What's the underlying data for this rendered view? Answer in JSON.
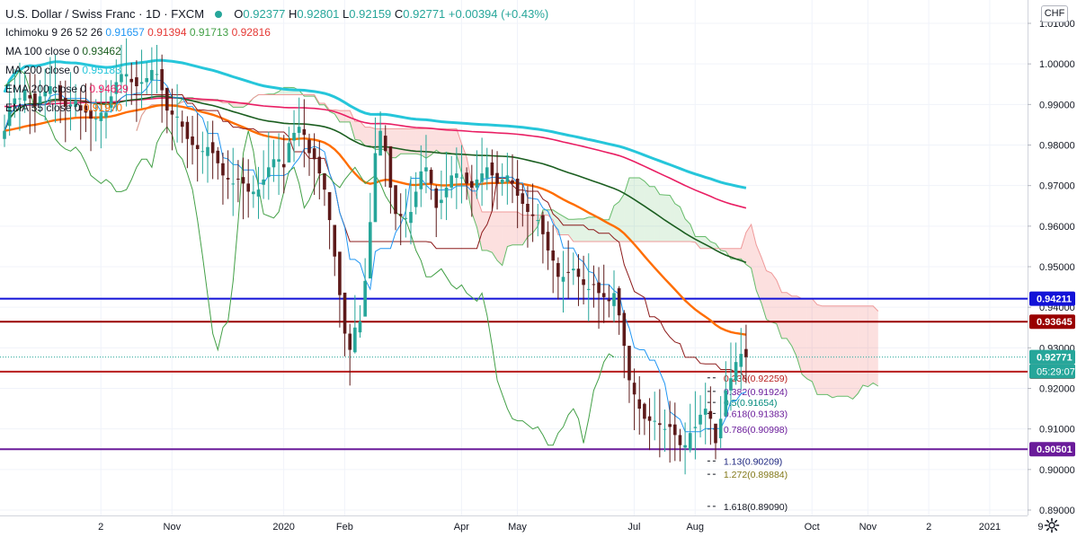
{
  "header": {
    "title": "U.S. Dollar / Swiss Franc · 1D · FXCM",
    "ohlc": [
      {
        "k": "O",
        "v": "0.92377"
      },
      {
        "k": "H",
        "v": "0.92801"
      },
      {
        "k": "L",
        "v": "0.92159"
      },
      {
        "k": "C",
        "v": "0.92771"
      }
    ],
    "change": "+0.00394 (+0.43%)",
    "indicators": [
      {
        "name": "Ichimoku 9 26 52 26",
        "values": [
          {
            "v": "0.91657",
            "color": "#2196f3"
          },
          {
            "v": "0.91394",
            "color": "#e53935"
          },
          {
            "v": "0.91713",
            "color": "#43a047"
          },
          {
            "v": "0.92816",
            "color": "#e53935"
          }
        ]
      },
      {
        "name": "MA 100 close 0",
        "values": [
          {
            "v": "0.93462",
            "color": "#1b5e20"
          }
        ]
      },
      {
        "name": "MA 200 close 0",
        "values": [
          {
            "v": "0.95183",
            "color": "#26c6da"
          }
        ]
      },
      {
        "name": "EMA 200 close 0",
        "values": [
          {
            "v": "0.94629",
            "color": "#e91e63"
          }
        ]
      },
      {
        "name": "EMA 55 close 0",
        "values": [
          {
            "v": "0.91970",
            "color": "#ff6d00"
          }
        ]
      }
    ]
  },
  "currency_badge": "CHF",
  "chart_data": {
    "type": "candlestick",
    "symbol": "USDCHF",
    "ylim": [
      0.889,
      1.0125
    ],
    "y_ticks": [
      "0.89000",
      "0.90000",
      "0.91000",
      "0.92000",
      "0.93000",
      "0.94000",
      "0.95000",
      "0.96000",
      "0.97000",
      "0.98000",
      "0.99000",
      "1.00000",
      "1.01000"
    ],
    "x_ticks": [
      {
        "label": "2",
        "i": 8
      },
      {
        "label": "Nov",
        "i": 22
      },
      {
        "label": "2020",
        "i": 44
      },
      {
        "label": "Feb",
        "i": 56
      },
      {
        "label": "Apr",
        "i": 79
      },
      {
        "label": "May",
        "i": 90
      },
      {
        "label": "Jul",
        "i": 113
      },
      {
        "label": "Aug",
        "i": 125
      },
      {
        "label": "Oct",
        "i": 148
      },
      {
        "label": "Nov",
        "i": 159
      },
      {
        "label": "2",
        "i": 171
      },
      {
        "label": "2021",
        "i": 183
      },
      {
        "label": "9",
        "i": 193
      }
    ],
    "closes": [
      0.9835,
      0.9895,
      0.9915,
      0.9915,
      0.9935,
      0.9915,
      0.9895,
      0.992,
      0.9932,
      0.9945,
      0.9935,
      0.991,
      0.9895,
      0.99,
      0.991,
      0.9885,
      0.988,
      0.9865,
      0.9865,
      0.988,
      0.988,
      0.992,
      0.9955,
      0.9975,
      0.9975,
      0.9955,
      0.9945,
      0.9955,
      0.9965,
      0.9985,
      0.9975,
      0.9935,
      0.9885,
      0.9875,
      0.987,
      0.9845,
      0.9815,
      0.98,
      0.979,
      0.9785,
      0.9795,
      0.978,
      0.9755,
      0.9725,
      0.9715,
      0.9705,
      0.9715,
      0.9705,
      0.9685,
      0.9685,
      0.969,
      0.9715,
      0.9745,
      0.9765,
      0.9765,
      0.9745,
      0.9805,
      0.983,
      0.9845,
      0.9825,
      0.978,
      0.9765,
      0.973,
      0.969,
      0.9615,
      0.9525,
      0.943,
      0.9335,
      0.9295,
      0.935,
      0.9365,
      0.9465,
      0.961,
      0.978,
      0.9835,
      0.9785,
      0.9695,
      0.963,
      0.9625,
      0.962,
      0.9635,
      0.9685,
      0.9735,
      0.9745,
      0.9705,
      0.9645,
      0.9665,
      0.9695,
      0.9725,
      0.973,
      0.972,
      0.9705,
      0.9695,
      0.9715,
      0.973,
      0.9745,
      0.9725,
      0.9705,
      0.9715,
      0.9725,
      0.9705,
      0.9675,
      0.9655,
      0.9635,
      0.9625,
      0.9615,
      0.958,
      0.954,
      0.9515,
      0.9475,
      0.9475,
      0.9485,
      0.9495,
      0.9475,
      0.9455,
      0.9445,
      0.9455,
      0.9435,
      0.9425,
      0.9415,
      0.9435,
      0.938,
      0.9305,
      0.922,
      0.9185,
      0.915,
      0.9125,
      0.912,
      0.912,
      0.911,
      0.91,
      0.9105,
      0.9085,
      0.906,
      0.906,
      0.909,
      0.9105,
      0.9135,
      0.915,
      0.9125,
      0.9065,
      0.9125,
      0.9195,
      0.9225,
      0.9265,
      0.9285,
      0.9277
    ],
    "price_lines": [
      {
        "price": 0.94211,
        "label": "0.94211",
        "color": "#1212d8"
      },
      {
        "price": 0.93645,
        "label": "0.93645",
        "color": "#990000"
      },
      {
        "price": 0.92771,
        "label": "0.92771",
        "color": "#26a69a"
      },
      {
        "price": 0.92413,
        "label": "0.92413",
        "color": "#b71c1c"
      },
      {
        "price": 0.90501,
        "label": "0.90501",
        "color": "#6a1b9a"
      }
    ],
    "countdown": "05:29:07",
    "fib_levels": [
      {
        "ratio": "0.236",
        "label": "0.236(0.92259)",
        "price": 0.92259,
        "color": "#b71c1c"
      },
      {
        "ratio": "0.382",
        "label": "0.382(0.91924)",
        "price": 0.91924,
        "color": "#6a1b9a"
      },
      {
        "ratio": "0.5",
        "label": "0.5(0.91654)",
        "price": 0.91654,
        "color": "#00897b"
      },
      {
        "ratio": "0.618",
        "label": "0.618(0.91383)",
        "price": 0.91383,
        "color": "#6a1b9a"
      },
      {
        "ratio": "0.786",
        "label": "0.786(0.90998)",
        "price": 0.90998,
        "color": "#6a1b9a"
      },
      {
        "ratio": "1.13",
        "label": "1.13(0.90209)",
        "price": 0.90209,
        "color": "#1a237e"
      },
      {
        "ratio": "1.272",
        "label": "1.272(0.89884)",
        "price": 0.89884,
        "color": "#827717"
      },
      {
        "ratio": "1.618",
        "label": "1.618(0.89090)",
        "price": 0.8909,
        "color": "#131722"
      }
    ],
    "series_colors": {
      "up": "#26a69a",
      "down": "#5d1a1a",
      "ema55": "#ff6d00",
      "ma100": "#1b5e20",
      "ma200": "#26c6da",
      "ema200": "#e91e63",
      "tenkan": "#2196f3",
      "kijun": "#8d1b1b",
      "lagging": "#43a047",
      "span_a": "#66bb6a",
      "span_b": "#ef9a9a"
    }
  }
}
